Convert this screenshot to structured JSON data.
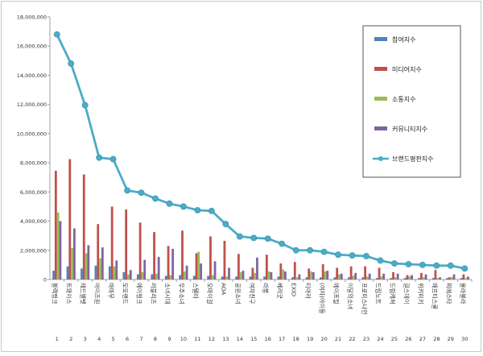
{
  "chart_data": {
    "type": "bar",
    "ylim": [
      0,
      18000000
    ],
    "yticks": [
      "0",
      "2,000,000",
      "4,000,000",
      "6,000,000",
      "8,000,000",
      "10,000,000",
      "12,000,000",
      "14,000,000",
      "16,000,000",
      "18,000,000"
    ],
    "grid": false,
    "legend_position": "right",
    "categories": [
      "블랙핑크",
      "트와이스",
      "레드벨벳",
      "아이즈원",
      "마마무",
      "모모랜드",
      "에이핑크",
      "러블리즈",
      "소녀시대",
      "우주소녀",
      "스텔라",
      "오마이걸",
      "AOA",
      "공원소녀",
      "여자친구",
      "라붐",
      "베리굿",
      "EXID",
      "티아라",
      "(여자)아이들",
      "에이프릴",
      "이달의소녀",
      "프로미스나인",
      "드림노트",
      "드림캐쳐",
      "걸스데이",
      "위키미키",
      "애프티스쿨",
      "피에스타",
      "올라불라"
    ],
    "ranks": [
      "1",
      "2",
      "3",
      "4",
      "5",
      "6",
      "7",
      "8",
      "9",
      "10",
      "11",
      "12",
      "13",
      "14",
      "15",
      "16",
      "17",
      "18",
      "19",
      "20",
      "21",
      "22",
      "23",
      "24",
      "25",
      "26",
      "27",
      "28",
      "29",
      "30"
    ],
    "series": [
      {
        "name": "참여지수",
        "type": "bar",
        "color": "#4f81bd",
        "values": [
          600000,
          900000,
          750000,
          950000,
          900000,
          500000,
          350000,
          350000,
          250000,
          300000,
          250000,
          250000,
          200000,
          200000,
          200000,
          200000,
          200000,
          150000,
          150000,
          150000,
          150000,
          150000,
          150000,
          100000,
          100000,
          100000,
          100000,
          100000,
          100000,
          100000
        ]
      },
      {
        "name": "미디어지수",
        "type": "bar",
        "color": "#c0504d",
        "values": [
          7450000,
          8250000,
          7200000,
          3800000,
          5000000,
          4800000,
          3900000,
          3250000,
          2300000,
          3350000,
          1800000,
          2950000,
          2650000,
          1750000,
          800000,
          1700000,
          1100000,
          1200000,
          750000,
          1050000,
          800000,
          900000,
          900000,
          800000,
          500000,
          300000,
          450000,
          650000,
          150000,
          350000
        ]
      },
      {
        "name": "소통지수",
        "type": "bar",
        "color": "#9bbb59",
        "values": [
          4600000,
          2150000,
          1800000,
          1450000,
          900000,
          350000,
          500000,
          400000,
          300000,
          550000,
          1900000,
          300000,
          200000,
          500000,
          450000,
          550000,
          700000,
          150000,
          550000,
          550000,
          350000,
          250000,
          200000,
          200000,
          150000,
          200000,
          150000,
          100000,
          150000,
          100000
        ]
      },
      {
        "name": "커뮤니티지수",
        "type": "bar",
        "color": "#8064a2",
        "values": [
          4000000,
          3500000,
          2350000,
          2200000,
          1300000,
          650000,
          1350000,
          1550000,
          2100000,
          950000,
          1100000,
          1250000,
          800000,
          600000,
          1500000,
          500000,
          550000,
          350000,
          500000,
          600000,
          400000,
          450000,
          400000,
          400000,
          400000,
          300000,
          350000,
          150000,
          350000,
          200000
        ]
      },
      {
        "name": "브랜드평판지수",
        "type": "line",
        "color": "#4bacc6",
        "values": [
          16800000,
          14800000,
          11950000,
          8350000,
          8250000,
          6100000,
          5950000,
          5550000,
          5200000,
          5000000,
          4750000,
          4700000,
          3800000,
          2950000,
          2850000,
          2800000,
          2450000,
          2000000,
          2000000,
          1900000,
          1700000,
          1650000,
          1600000,
          1300000,
          1100000,
          1050000,
          1000000,
          950000,
          950000,
          750000
        ]
      }
    ]
  }
}
